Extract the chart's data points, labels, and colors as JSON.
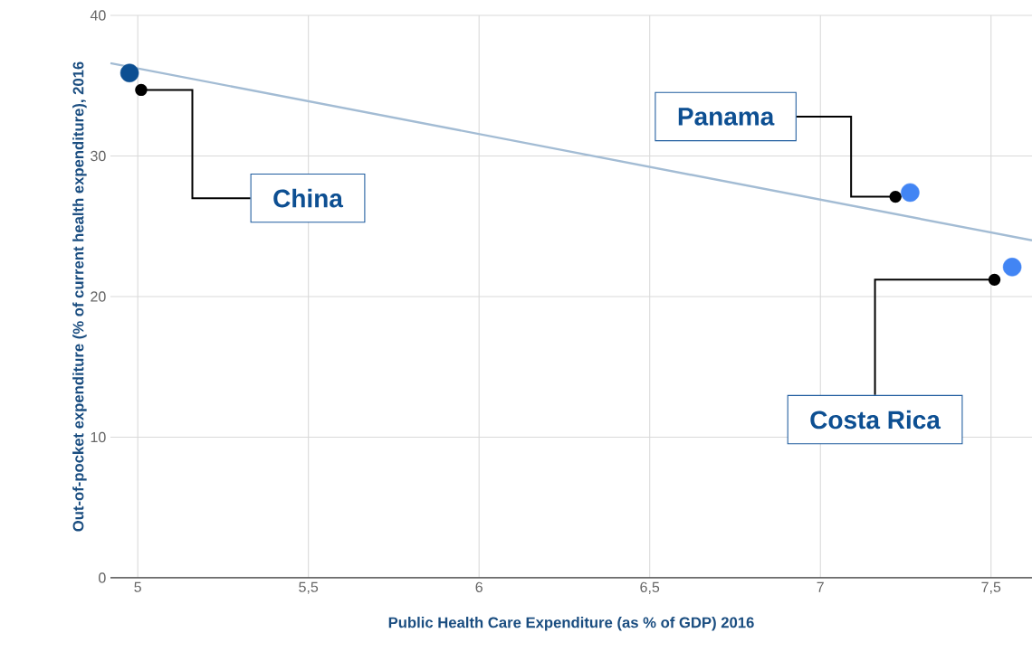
{
  "chart_data": {
    "type": "scatter",
    "xlabel": "Public Health Care Expenditure (as % of GDP) 2016",
    "ylabel": "Out-of-pocket expenditure (% of current health expenditure), 2016",
    "series": [
      {
        "x": [
          4.976,
          7.263,
          7.562
        ],
        "values": [
          35.9,
          27.4,
          22.1
        ],
        "colors": [
          "#0d4f92",
          "#4285f4",
          "#4285f4"
        ]
      },
      {
        "type": "line",
        "x": [
          4.92,
          7.62
        ],
        "values": [
          36.6,
          24.0
        ],
        "color": "#a3bcd4"
      }
    ],
    "annotations": [
      {
        "text": "China",
        "x": 5.01,
        "y": 34.7
      },
      {
        "text": "Panama",
        "x": 7.22,
        "y": 27.1
      },
      {
        "text": "Costa Rica",
        "x": 7.51,
        "y": 21.2
      }
    ],
    "xlim": [
      4.92,
      7.62
    ],
    "ylim": [
      0,
      40
    ],
    "xticks": [
      5,
      {
        "value": 5.5,
        "label": "5,5"
      },
      6,
      {
        "value": 6.5,
        "label": "6,5"
      },
      7,
      {
        "value": 7.5,
        "label": "7,5"
      }
    ],
    "yticks": [
      0,
      10,
      20,
      30,
      40
    ],
    "grid": true
  }
}
